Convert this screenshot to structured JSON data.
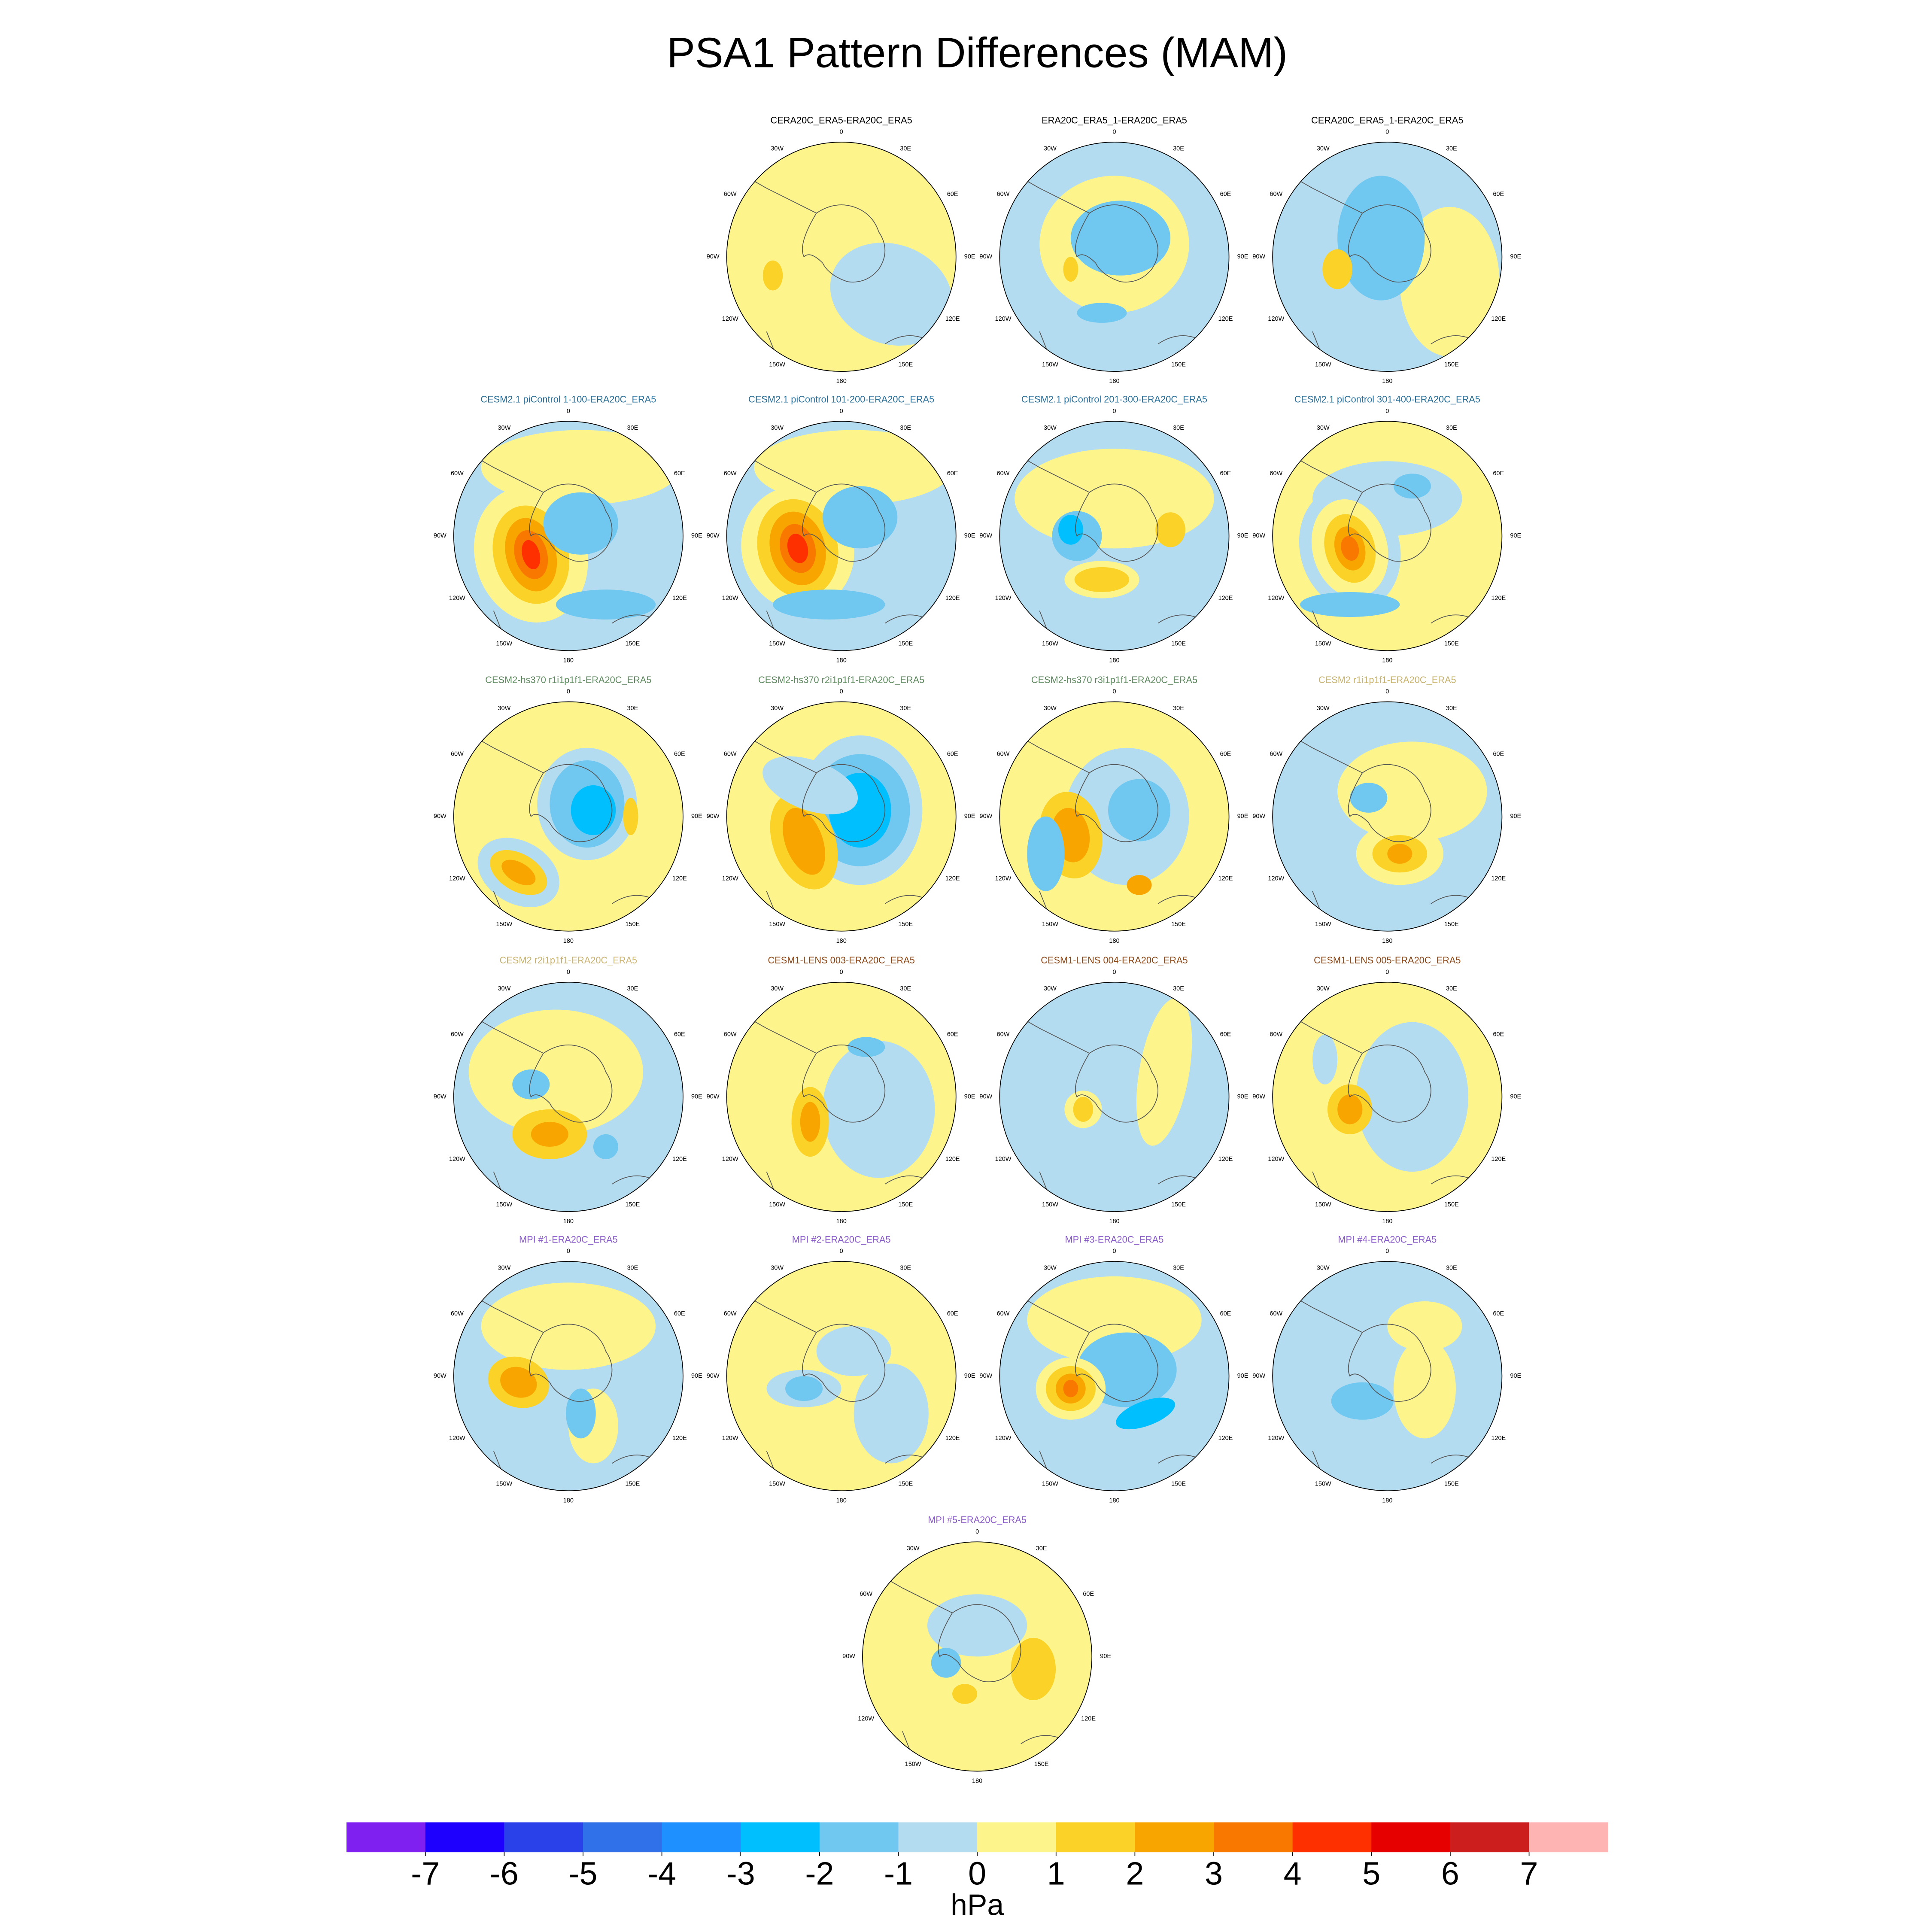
{
  "title": "PSA1 Pattern Differences (MAM)",
  "lon_labels": [
    "0",
    "30E",
    "60E",
    "90E",
    "120E",
    "150E",
    "180",
    "150W",
    "120W",
    "90W",
    "60W",
    "30W"
  ],
  "panels": [
    {
      "title": "CERA20C_ERA5-ERA20C_ERA5",
      "color": "#000000"
    },
    {
      "title": "ERA20C_ERA5_1-ERA20C_ERA5",
      "color": "#000000"
    },
    {
      "title": "CERA20C_ERA5_1-ERA20C_ERA5",
      "color": "#000000"
    },
    {
      "title": "CESM2.1 piControl 1-100-ERA20C_ERA5",
      "color": "#2a6f97"
    },
    {
      "title": "CESM2.1 piControl 101-200-ERA20C_ERA5",
      "color": "#2a6f97"
    },
    {
      "title": "CESM2.1 piControl 201-300-ERA20C_ERA5",
      "color": "#2a6f97"
    },
    {
      "title": "CESM2.1 piControl 301-400-ERA20C_ERA5",
      "color": "#2a6f97"
    },
    {
      "title": "CESM2-hs370 r1i1p1f1-ERA20C_ERA5",
      "color": "#5f8a60"
    },
    {
      "title": "CESM2-hs370 r2i1p1f1-ERA20C_ERA5",
      "color": "#5f8a60"
    },
    {
      "title": "CESM2-hs370 r3i1p1f1-ERA20C_ERA5",
      "color": "#5f8a60"
    },
    {
      "title": "CESM2 r1i1p1f1-ERA20C_ERA5",
      "color": "#c8b46e"
    },
    {
      "title": "CESM2 r2i1p1f1-ERA20C_ERA5",
      "color": "#c8b46e"
    },
    {
      "title": "CESM1-LENS 003-ERA20C_ERA5",
      "color": "#8b4513"
    },
    {
      "title": "CESM1-LENS 004-ERA20C_ERA5",
      "color": "#8b4513"
    },
    {
      "title": "CESM1-LENS 005-ERA20C_ERA5",
      "color": "#8b4513"
    },
    {
      "title": "MPI #1-ERA20C_ERA5",
      "color": "#8a5cc8"
    },
    {
      "title": "MPI #2-ERA20C_ERA5",
      "color": "#8a5cc8"
    },
    {
      "title": "MPI #3-ERA20C_ERA5",
      "color": "#8a5cc8"
    },
    {
      "title": "MPI #4-ERA20C_ERA5",
      "color": "#8a5cc8"
    },
    {
      "title": "MPI #5-ERA20C_ERA5",
      "color": "#8a5cc8"
    }
  ],
  "colorbar": {
    "ticks": [
      -7,
      -6,
      -5,
      -4,
      -3,
      -2,
      -1,
      0,
      1,
      2,
      3,
      4,
      5,
      6,
      7
    ],
    "colors": [
      "#8020f0",
      "#1e00ff",
      "#2a40e8",
      "#3070e8",
      "#1e90ff",
      "#00bfff",
      "#70c8f0",
      "#b4dcf0",
      "#fdf58c",
      "#fad228",
      "#f8a500",
      "#f87800",
      "#ff3000",
      "#e60000",
      "#cd1e1e",
      "#ffb4b4"
    ],
    "label": "hPa"
  }
}
